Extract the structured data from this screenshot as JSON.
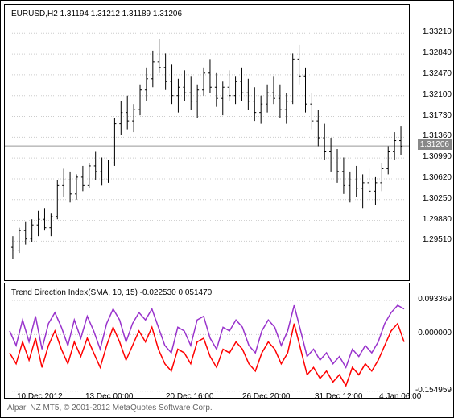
{
  "main": {
    "header": "EURUSD,H2  1.31194 1.31212 1.31189 1.31206",
    "ylim": [
      1.289,
      1.334
    ],
    "yticks": [
      "1.33210",
      "1.32840",
      "1.32470",
      "1.32100",
      "1.31730",
      "1.31360",
      "1.30990",
      "1.30620",
      "1.30250",
      "1.29880",
      "1.29510"
    ],
    "price_line": 1.31206,
    "price_tag": "1.31206",
    "candle_color": "#000000",
    "bg_color": "#ffffff",
    "hline_color": "#999999",
    "candles": [
      {
        "o": 1.294,
        "h": 1.296,
        "l": 1.292,
        "c": 1.2935
      },
      {
        "o": 1.2935,
        "h": 1.2975,
        "l": 1.293,
        "c": 1.297
      },
      {
        "o": 1.297,
        "h": 1.2985,
        "l": 1.2945,
        "c": 1.2955
      },
      {
        "o": 1.2955,
        "h": 1.299,
        "l": 1.295,
        "c": 1.298
      },
      {
        "o": 1.298,
        "h": 1.3005,
        "l": 1.296,
        "c": 1.299
      },
      {
        "o": 1.299,
        "h": 1.301,
        "l": 1.297,
        "c": 1.2975
      },
      {
        "o": 1.2975,
        "h": 1.3,
        "l": 1.296,
        "c": 1.2995
      },
      {
        "o": 1.2995,
        "h": 1.306,
        "l": 1.299,
        "c": 1.305
      },
      {
        "o": 1.305,
        "h": 1.308,
        "l": 1.303,
        "c": 1.306
      },
      {
        "o": 1.306,
        "h": 1.3075,
        "l": 1.302,
        "c": 1.3035
      },
      {
        "o": 1.3035,
        "h": 1.307,
        "l": 1.3025,
        "c": 1.3065
      },
      {
        "o": 1.3065,
        "h": 1.3085,
        "l": 1.304,
        "c": 1.305
      },
      {
        "o": 1.305,
        "h": 1.309,
        "l": 1.3045,
        "c": 1.3085
      },
      {
        "o": 1.3085,
        "h": 1.311,
        "l": 1.306,
        "c": 1.3075
      },
      {
        "o": 1.3075,
        "h": 1.31,
        "l": 1.305,
        "c": 1.306
      },
      {
        "o": 1.306,
        "h": 1.3095,
        "l": 1.3055,
        "c": 1.309
      },
      {
        "o": 1.309,
        "h": 1.317,
        "l": 1.3085,
        "c": 1.316
      },
      {
        "o": 1.316,
        "h": 1.32,
        "l": 1.314,
        "c": 1.318
      },
      {
        "o": 1.318,
        "h": 1.321,
        "l": 1.315,
        "c": 1.3165
      },
      {
        "o": 1.3165,
        "h": 1.3195,
        "l": 1.3145,
        "c": 1.3185
      },
      {
        "o": 1.3185,
        "h": 1.323,
        "l": 1.3175,
        "c": 1.322
      },
      {
        "o": 1.322,
        "h": 1.326,
        "l": 1.32,
        "c": 1.324
      },
      {
        "o": 1.324,
        "h": 1.329,
        "l": 1.3225,
        "c": 1.327
      },
      {
        "o": 1.327,
        "h": 1.331,
        "l": 1.325,
        "c": 1.326
      },
      {
        "o": 1.326,
        "h": 1.3285,
        "l": 1.322,
        "c": 1.3235
      },
      {
        "o": 1.3235,
        "h": 1.3265,
        "l": 1.3195,
        "c": 1.321
      },
      {
        "o": 1.321,
        "h": 1.324,
        "l": 1.318,
        "c": 1.3225
      },
      {
        "o": 1.3225,
        "h": 1.3255,
        "l": 1.32,
        "c": 1.3215
      },
      {
        "o": 1.3215,
        "h": 1.3245,
        "l": 1.3185,
        "c": 1.32
      },
      {
        "o": 1.32,
        "h": 1.323,
        "l": 1.317,
        "c": 1.322
      },
      {
        "o": 1.322,
        "h": 1.326,
        "l": 1.321,
        "c": 1.325
      },
      {
        "o": 1.325,
        "h": 1.3275,
        "l": 1.3215,
        "c": 1.3225
      },
      {
        "o": 1.3225,
        "h": 1.325,
        "l": 1.319,
        "c": 1.3205
      },
      {
        "o": 1.3205,
        "h": 1.3235,
        "l": 1.3175,
        "c": 1.3225
      },
      {
        "o": 1.3225,
        "h": 1.3255,
        "l": 1.32,
        "c": 1.321
      },
      {
        "o": 1.321,
        "h": 1.3245,
        "l": 1.3195,
        "c": 1.3235
      },
      {
        "o": 1.3235,
        "h": 1.326,
        "l": 1.32,
        "c": 1.3215
      },
      {
        "o": 1.3215,
        "h": 1.324,
        "l": 1.3185,
        "c": 1.32
      },
      {
        "o": 1.32,
        "h": 1.3225,
        "l": 1.3165,
        "c": 1.318
      },
      {
        "o": 1.318,
        "h": 1.321,
        "l": 1.316,
        "c": 1.3195
      },
      {
        "o": 1.3195,
        "h": 1.323,
        "l": 1.318,
        "c": 1.3215
      },
      {
        "o": 1.3215,
        "h": 1.3245,
        "l": 1.3195,
        "c": 1.3205
      },
      {
        "o": 1.3205,
        "h": 1.323,
        "l": 1.317,
        "c": 1.3185
      },
      {
        "o": 1.3185,
        "h": 1.3215,
        "l": 1.316,
        "c": 1.32
      },
      {
        "o": 1.32,
        "h": 1.3285,
        "l": 1.3195,
        "c": 1.3275
      },
      {
        "o": 1.3275,
        "h": 1.33,
        "l": 1.323,
        "c": 1.3245
      },
      {
        "o": 1.3245,
        "h": 1.326,
        "l": 1.318,
        "c": 1.3195
      },
      {
        "o": 1.3195,
        "h": 1.3215,
        "l": 1.315,
        "c": 1.3165
      },
      {
        "o": 1.3165,
        "h": 1.3185,
        "l": 1.312,
        "c": 1.3135
      },
      {
        "o": 1.3135,
        "h": 1.316,
        "l": 1.3095,
        "c": 1.311
      },
      {
        "o": 1.311,
        "h": 1.3135,
        "l": 1.3075,
        "c": 1.309
      },
      {
        "o": 1.309,
        "h": 1.3115,
        "l": 1.3055,
        "c": 1.3075
      },
      {
        "o": 1.3075,
        "h": 1.31,
        "l": 1.3035,
        "c": 1.305
      },
      {
        "o": 1.305,
        "h": 1.3075,
        "l": 1.302,
        "c": 1.306
      },
      {
        "o": 1.306,
        "h": 1.3085,
        "l": 1.303,
        "c": 1.3045
      },
      {
        "o": 1.3045,
        "h": 1.307,
        "l": 1.301,
        "c": 1.3055
      },
      {
        "o": 1.3055,
        "h": 1.308,
        "l": 1.3025,
        "c": 1.304
      },
      {
        "o": 1.304,
        "h": 1.3065,
        "l": 1.3015,
        "c": 1.3055
      },
      {
        "o": 1.3055,
        "h": 1.309,
        "l": 1.304,
        "c": 1.308
      },
      {
        "o": 1.308,
        "h": 1.312,
        "l": 1.307,
        "c": 1.311
      },
      {
        "o": 1.311,
        "h": 1.3145,
        "l": 1.3095,
        "c": 1.313
      },
      {
        "o": 1.313,
        "h": 1.3155,
        "l": 1.3105,
        "c": 1.312
      }
    ]
  },
  "sub": {
    "header": "Trend Direction Index(SMA, 10, 15) -0.022530 0.051470",
    "ylim": [
      -0.16,
      0.1
    ],
    "yticks": [
      {
        "v": 0.093369,
        "label": "0.093369"
      },
      {
        "v": 0.0,
        "label": "0.000000"
      },
      {
        "v": -0.154959,
        "label": "-0.154959"
      }
    ],
    "zero_color": "#999999",
    "line1_color": "#9933cc",
    "line2_color": "#ff0000",
    "line1": [
      0.01,
      -0.03,
      0.04,
      -0.02,
      0.05,
      -0.04,
      0.03,
      0.06,
      0.02,
      -0.03,
      0.04,
      -0.01,
      0.05,
      0.01,
      -0.04,
      0.03,
      0.07,
      0.04,
      -0.02,
      0.03,
      0.06,
      0.04,
      0.07,
      0.02,
      -0.03,
      -0.05,
      0.02,
      0.01,
      -0.03,
      0.04,
      0.05,
      -0.01,
      -0.04,
      0.02,
      0.01,
      0.04,
      0.02,
      -0.03,
      -0.05,
      0.01,
      0.04,
      0.02,
      -0.03,
      0.01,
      0.08,
      0.01,
      -0.06,
      -0.04,
      -0.07,
      -0.05,
      -0.08,
      -0.06,
      -0.09,
      -0.04,
      -0.06,
      -0.03,
      -0.05,
      -0.02,
      0.03,
      0.06,
      0.08,
      0.07
    ],
    "line2": [
      -0.05,
      -0.08,
      -0.02,
      -0.07,
      -0.01,
      -0.09,
      -0.03,
      0.01,
      -0.04,
      -0.08,
      -0.02,
      -0.06,
      -0.01,
      -0.05,
      -0.09,
      -0.03,
      0.02,
      -0.02,
      -0.07,
      -0.03,
      0.01,
      -0.02,
      0.02,
      -0.04,
      -0.08,
      -0.1,
      -0.04,
      -0.05,
      -0.08,
      -0.02,
      -0.01,
      -0.06,
      -0.09,
      -0.04,
      -0.05,
      -0.02,
      -0.04,
      -0.08,
      -0.1,
      -0.05,
      -0.02,
      -0.04,
      -0.08,
      -0.05,
      0.03,
      -0.04,
      -0.11,
      -0.09,
      -0.12,
      -0.1,
      -0.13,
      -0.11,
      -0.14,
      -0.09,
      -0.11,
      -0.08,
      -0.1,
      -0.07,
      -0.03,
      0.01,
      0.03,
      -0.02
    ]
  },
  "xlabels": [
    "10 Dec 2012",
    "13 Dec 00:00",
    "20 Dec 16:00",
    "26 Dec 20:00",
    "31 Dec 12:00",
    "4 Jan 06:00"
  ],
  "footer": "Alpari NZ MT5, © 2001-2012 MetaQuotes Software Corp."
}
